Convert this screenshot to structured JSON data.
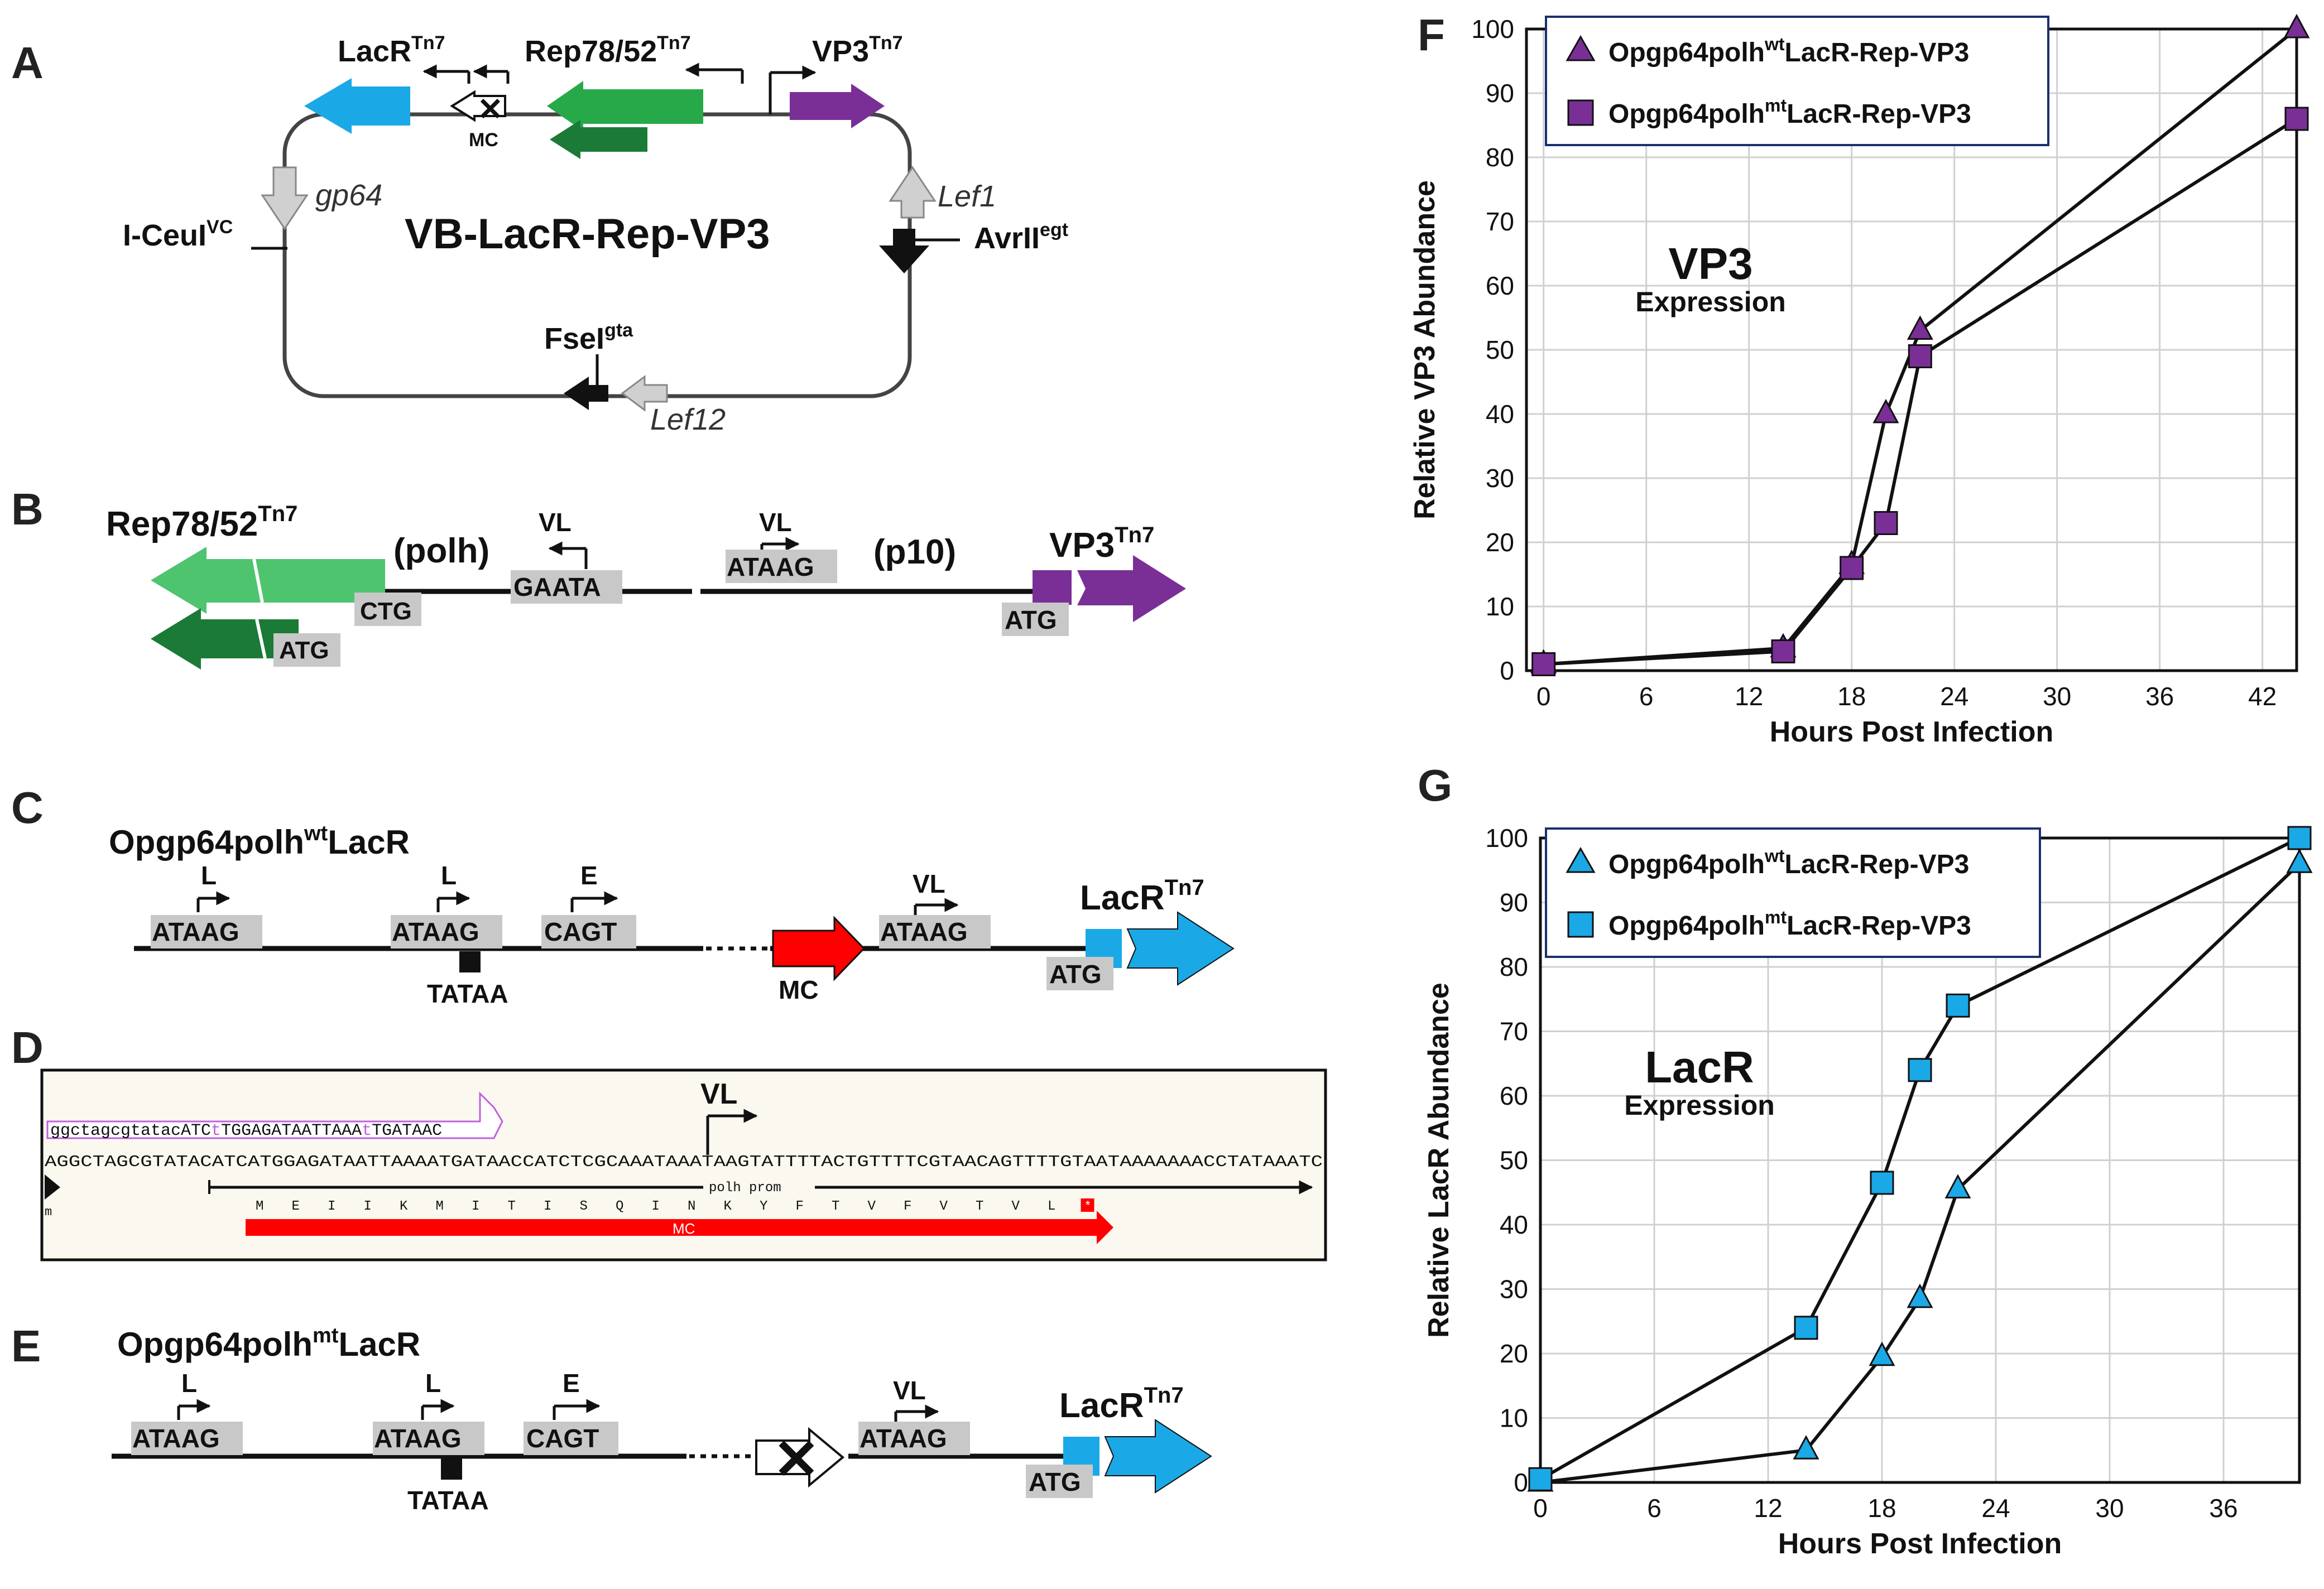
{
  "colors": {
    "purple": "#7a2f96",
    "blue": "#1aa9e6",
    "green": "#27a94a",
    "darkgreen": "#1b7a36",
    "red": "#ff0000",
    "gray": "#bbbbbb",
    "grid": "#d0d0d0"
  },
  "panels": {
    "A": "A",
    "B": "B",
    "C": "C",
    "D": "D",
    "E": "E",
    "F": "F",
    "G": "G"
  },
  "panelA": {
    "title": "VB-LacR-Rep-VP3",
    "lacr": "LacR",
    "lacr_sup": "Tn7",
    "rep": "Rep78/52",
    "rep_sup": "Tn7",
    "vp3": "VP3",
    "vp3_sup": "Tn7",
    "mc": "MC",
    "gp64": "gp64",
    "iceul": "I-CeuI",
    "iceul_sup": "VC",
    "lef1": "Lef1",
    "avrii": "AvrII",
    "avrii_sup": "egt",
    "fsei": "FseI",
    "fsei_sup": "gta",
    "lef12": "Lef12"
  },
  "panelB": {
    "rep": "Rep78/52",
    "rep_sup": "Tn7",
    "polh": "(polh)",
    "p10": "(p10)",
    "vl1": "VL",
    "vl2": "VL",
    "gaata": "GAATA",
    "ataag": "ATAAG",
    "ctg": "CTG",
    "atg1": "ATG",
    "atg2": "ATG",
    "vp3": "VP3",
    "vp3_sup": "Tn7"
  },
  "panelC": {
    "title": "Opgp64polh",
    "title_sup": "wt",
    "title_end": "LacR",
    "l1": "L",
    "l2": "L",
    "e": "E",
    "vl": "VL",
    "box1": "ATAAG",
    "box2": "ATAAG",
    "box3": "CAGT",
    "box4": "ATAAG",
    "tata": "TATAA",
    "mc": "MC",
    "atg": "ATG",
    "lacr": "LacR",
    "lacr_sup": "Tn7"
  },
  "panelD": {
    "primer_a": "ggctagcgtatacATC",
    "primer_t1": "t",
    "primer_b": "TGGAGATAATTAAA",
    "primer_t2": "t",
    "primer_c": "TGATAAC",
    "seq": "AGGCTAGCGTATACATCATGGAGATAATTAAAATGATAACCATCTCGCAAATAAATAAGTATTTTACTGTTTTCGTAACAGTTTTGTAATAAAAAAACCTATAAATC",
    "vl": "VL",
    "m": "m",
    "polh_prom": "polh prom",
    "aa": [
      "M",
      "E",
      "I",
      "I",
      "K",
      "M",
      "I",
      "T",
      "I",
      "S",
      "Q",
      "I",
      "N",
      "K",
      "Y",
      "F",
      "T",
      "V",
      "F",
      "V",
      "T",
      "V",
      "L",
      "*"
    ],
    "mc": "MC"
  },
  "panelE": {
    "title": "Opgp64polh",
    "title_sup": "mt",
    "title_end": "LacR",
    "l1": "L",
    "l2": "L",
    "e": "E",
    "vl": "VL",
    "box1": "ATAAG",
    "box2": "ATAAG",
    "box3": "CAGT",
    "box4": "ATAAG",
    "tata": "TATAA",
    "atg": "ATG",
    "lacr": "LacR",
    "lacr_sup": "Tn7"
  },
  "chart_data": [
    {
      "type": "line",
      "panel": "F",
      "title": "VP3",
      "subtitle": "Expression",
      "xlabel": "Hours Post Infection",
      "ylabel": "Relative VP3 Abundance",
      "xlim": [
        -1,
        44
      ],
      "ylim": [
        0,
        100
      ],
      "xticks": [
        0,
        6,
        12,
        18,
        24,
        30,
        36,
        42
      ],
      "yticks": [
        0,
        10,
        20,
        30,
        40,
        50,
        60,
        70,
        80,
        90,
        100
      ],
      "grid": true,
      "legend_position": "top-left",
      "series": [
        {
          "name_pre": "Opgp64polh",
          "name_sup": "wt",
          "name_post": "LacR-Rep-VP3",
          "marker": "triangle",
          "color": "#7a2f96",
          "x": [
            0,
            14,
            18,
            20,
            22,
            44
          ],
          "y": [
            1,
            3.5,
            16.5,
            40,
            53,
            100
          ]
        },
        {
          "name_pre": "Opgp64polh",
          "name_sup": "mt",
          "name_post": "LacR-Rep-VP3",
          "marker": "square",
          "color": "#7a2f96",
          "x": [
            0,
            14,
            18,
            20,
            22,
            44
          ],
          "y": [
            1,
            3,
            16,
            23,
            49,
            86
          ]
        }
      ]
    },
    {
      "type": "line",
      "panel": "G",
      "title": "LacR",
      "subtitle": "Expression",
      "xlabel": "Hours Post Infection",
      "ylabel": "Relative LacR Abundance",
      "xlim": [
        0,
        40
      ],
      "ylim": [
        0,
        100
      ],
      "xticks": [
        0,
        6,
        12,
        18,
        24,
        30,
        36
      ],
      "yticks": [
        0,
        10,
        20,
        30,
        40,
        50,
        60,
        70,
        80,
        90,
        100
      ],
      "grid": true,
      "legend_position": "top-left",
      "series": [
        {
          "name_pre": "Opgp64polh",
          "name_sup": "wt",
          "name_post": "LacR-Rep-VP3",
          "marker": "triangle",
          "color": "#1aa9e6",
          "x": [
            0,
            14,
            18,
            20,
            22,
            40
          ],
          "y": [
            0,
            5,
            19.5,
            28.5,
            45.5,
            96
          ]
        },
        {
          "name_pre": "Opgp64polh",
          "name_sup": "mt",
          "name_post": "LacR-Rep-VP3",
          "marker": "square",
          "color": "#1aa9e6",
          "x": [
            0,
            14,
            18,
            20,
            22,
            40
          ],
          "y": [
            0.5,
            24,
            46.5,
            64,
            74,
            100
          ]
        }
      ]
    }
  ]
}
